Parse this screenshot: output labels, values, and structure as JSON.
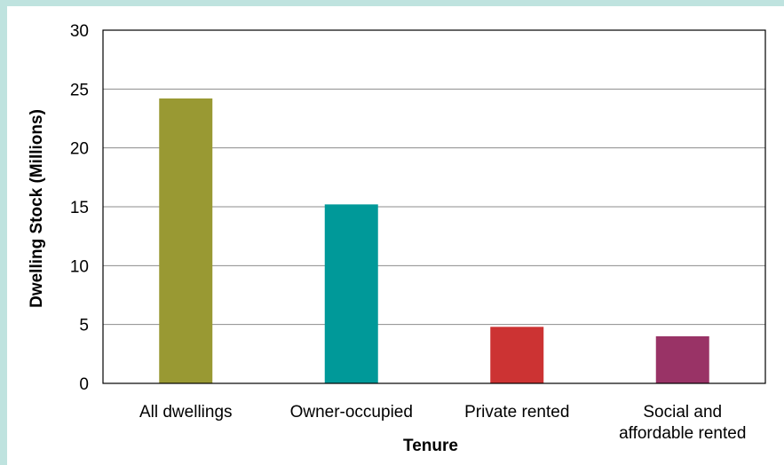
{
  "chart_data": {
    "type": "bar",
    "categories": [
      "All dwellings",
      "Owner-occupied",
      "Private rented",
      "Social and affordable rented"
    ],
    "category_lines": [
      [
        "All dwellings"
      ],
      [
        "Owner-occupied"
      ],
      [
        "Private rented"
      ],
      [
        "Social and",
        "affordable rented"
      ]
    ],
    "values": [
      24.2,
      15.2,
      4.8,
      4.0
    ],
    "colors": [
      "#999933",
      "#009999",
      "#cc3333",
      "#993366"
    ],
    "xlabel": "Tenure",
    "ylabel": "Dwelling Stock (Millions)",
    "ylim": [
      0,
      30
    ],
    "yticks": [
      0,
      5,
      10,
      15,
      20,
      25,
      30
    ],
    "grid": true,
    "legend": "none"
  }
}
